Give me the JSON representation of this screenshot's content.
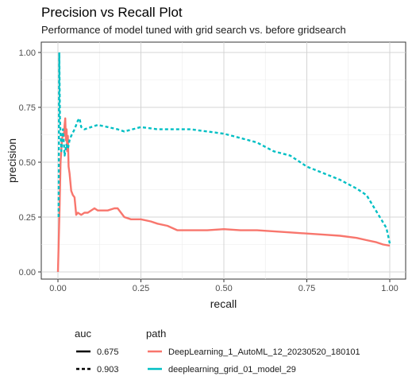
{
  "chart_data": {
    "type": "line",
    "title": "Precision vs Recall Plot",
    "subtitle": "Performance of model tuned with grid search vs. before gridsearch",
    "xlabel": "recall",
    "ylabel": "precision",
    "xlim": [
      0,
      1
    ],
    "ylim": [
      0,
      1
    ],
    "xticks": [
      "0.00",
      "0.25",
      "0.50",
      "0.75",
      "1.00"
    ],
    "yticks": [
      "0.00",
      "0.25",
      "0.50",
      "0.75",
      "1.00"
    ],
    "grid": true,
    "legend": {
      "placement": "bottom",
      "groups": [
        {
          "title": "auc",
          "items": [
            {
              "label": "0.675",
              "linetype": "solid"
            },
            {
              "label": "0.903",
              "linetype": "dashed"
            }
          ]
        },
        {
          "title": "path",
          "items": [
            {
              "label": "DeepLearning_1_AutoML_12_20230520_180101",
              "color": "#F8766D"
            },
            {
              "label": "deeplearning_grid_01_model_29",
              "color": "#00BFC4"
            }
          ]
        }
      ]
    },
    "series": [
      {
        "name": "DeepLearning_1_AutoML_12_20230520_180101",
        "auc": "0.675",
        "color": "#F8766D",
        "linetype": "solid",
        "points": [
          [
            0.0,
            0.0
          ],
          [
            0.005,
            0.3
          ],
          [
            0.008,
            0.5
          ],
          [
            0.012,
            0.6
          ],
          [
            0.015,
            0.63
          ],
          [
            0.018,
            0.62
          ],
          [
            0.02,
            0.67
          ],
          [
            0.022,
            0.7
          ],
          [
            0.024,
            0.6
          ],
          [
            0.026,
            0.65
          ],
          [
            0.028,
            0.55
          ],
          [
            0.03,
            0.62
          ],
          [
            0.032,
            0.48
          ],
          [
            0.035,
            0.45
          ],
          [
            0.038,
            0.4
          ],
          [
            0.04,
            0.37
          ],
          [
            0.045,
            0.35
          ],
          [
            0.05,
            0.34
          ],
          [
            0.055,
            0.26
          ],
          [
            0.06,
            0.27
          ],
          [
            0.07,
            0.26
          ],
          [
            0.08,
            0.27
          ],
          [
            0.09,
            0.27
          ],
          [
            0.1,
            0.28
          ],
          [
            0.11,
            0.29
          ],
          [
            0.12,
            0.28
          ],
          [
            0.13,
            0.28
          ],
          [
            0.15,
            0.28
          ],
          [
            0.17,
            0.29
          ],
          [
            0.18,
            0.29
          ],
          [
            0.19,
            0.27
          ],
          [
            0.2,
            0.25
          ],
          [
            0.22,
            0.24
          ],
          [
            0.25,
            0.24
          ],
          [
            0.28,
            0.23
          ],
          [
            0.3,
            0.22
          ],
          [
            0.33,
            0.21
          ],
          [
            0.36,
            0.19
          ],
          [
            0.4,
            0.19
          ],
          [
            0.45,
            0.19
          ],
          [
            0.5,
            0.195
          ],
          [
            0.55,
            0.19
          ],
          [
            0.6,
            0.19
          ],
          [
            0.65,
            0.185
          ],
          [
            0.7,
            0.18
          ],
          [
            0.75,
            0.175
          ],
          [
            0.8,
            0.17
          ],
          [
            0.85,
            0.165
          ],
          [
            0.9,
            0.155
          ],
          [
            0.93,
            0.145
          ],
          [
            0.96,
            0.135
          ],
          [
            0.98,
            0.125
          ],
          [
            1.0,
            0.12
          ]
        ]
      },
      {
        "name": "deeplearning_grid_01_model_29",
        "auc": "0.903",
        "color": "#00BFC4",
        "linetype": "dashed",
        "points": [
          [
            0.002,
            0.25
          ],
          [
            0.004,
            1.0
          ],
          [
            0.006,
            0.7
          ],
          [
            0.01,
            0.55
          ],
          [
            0.015,
            0.65
          ],
          [
            0.02,
            0.53
          ],
          [
            0.025,
            0.58
          ],
          [
            0.03,
            0.56
          ],
          [
            0.035,
            0.6
          ],
          [
            0.04,
            0.62
          ],
          [
            0.05,
            0.65
          ],
          [
            0.06,
            0.69
          ],
          [
            0.065,
            0.7
          ],
          [
            0.07,
            0.66
          ],
          [
            0.08,
            0.65
          ],
          [
            0.1,
            0.66
          ],
          [
            0.12,
            0.67
          ],
          [
            0.15,
            0.66
          ],
          [
            0.18,
            0.65
          ],
          [
            0.2,
            0.64
          ],
          [
            0.25,
            0.66
          ],
          [
            0.3,
            0.65
          ],
          [
            0.35,
            0.65
          ],
          [
            0.4,
            0.65
          ],
          [
            0.45,
            0.64
          ],
          [
            0.5,
            0.63
          ],
          [
            0.55,
            0.61
          ],
          [
            0.6,
            0.59
          ],
          [
            0.65,
            0.55
          ],
          [
            0.7,
            0.53
          ],
          [
            0.75,
            0.48
          ],
          [
            0.8,
            0.45
          ],
          [
            0.85,
            0.42
          ],
          [
            0.9,
            0.38
          ],
          [
            0.93,
            0.35
          ],
          [
            0.95,
            0.3
          ],
          [
            0.97,
            0.25
          ],
          [
            0.99,
            0.2
          ],
          [
            1.0,
            0.13
          ]
        ]
      }
    ]
  }
}
